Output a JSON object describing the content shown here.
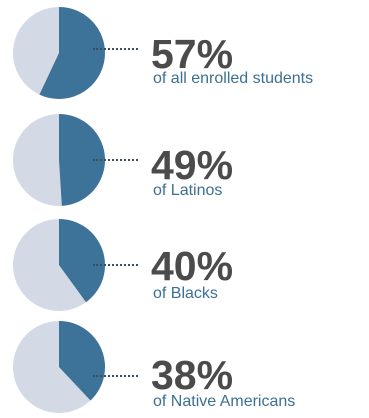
{
  "colors": {
    "slice": "#3d7399",
    "remainder": "#d3dae5",
    "percent_text": "#4b4b4b",
    "label_text": "#3c6f94",
    "leader": "#3d4e5e"
  },
  "chart_data": [
    {
      "type": "pie",
      "values": [
        57,
        43
      ],
      "percent_label": "57%",
      "label": "of all enrolled students"
    },
    {
      "type": "pie",
      "values": [
        49,
        51
      ],
      "percent_label": "49%",
      "label": "of Latinos"
    },
    {
      "type": "pie",
      "values": [
        40,
        60
      ],
      "percent_label": "40%",
      "label": "of Blacks"
    },
    {
      "type": "pie",
      "values": [
        38,
        62
      ],
      "percent_label": "38%",
      "label": "of Native Americans"
    }
  ]
}
